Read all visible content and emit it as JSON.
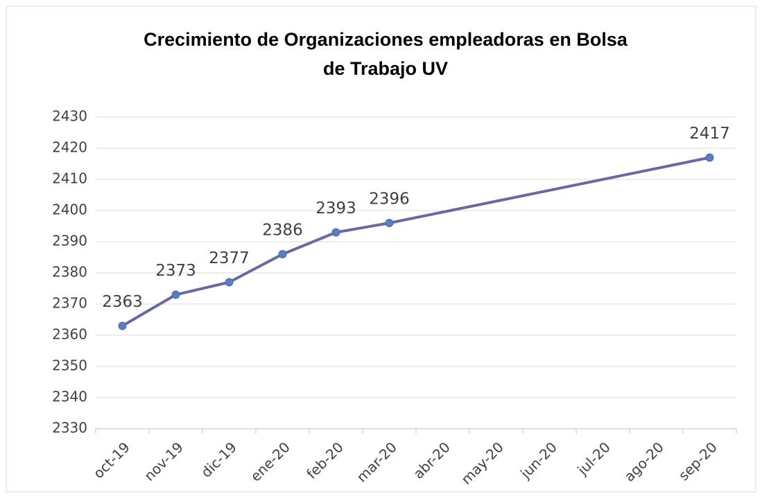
{
  "chart_data": {
    "type": "line",
    "title": [
      "Crecimiento de Organizaciones empleadoras en Bolsa",
      "de Trabajo UV"
    ],
    "categories": [
      "oct-19",
      "nov-19",
      "dic-19",
      "ene-20",
      "feb-20",
      "mar-20",
      "abr-20",
      "may-20",
      "jun-20",
      "jul-20",
      "ago-20",
      "sep-20"
    ],
    "values": [
      2363,
      2373,
      2377,
      2386,
      2393,
      2396,
      null,
      null,
      null,
      null,
      null,
      2417
    ],
    "color": "#6868a6",
    "marker_color": "#5a7fc0",
    "ylim": [
      2330,
      2430
    ],
    "yticks": [
      2330,
      2340,
      2350,
      2360,
      2370,
      2380,
      2390,
      2400,
      2410,
      2420,
      2430
    ],
    "grid": true,
    "connect_gaps": true,
    "data_labels": true
  }
}
